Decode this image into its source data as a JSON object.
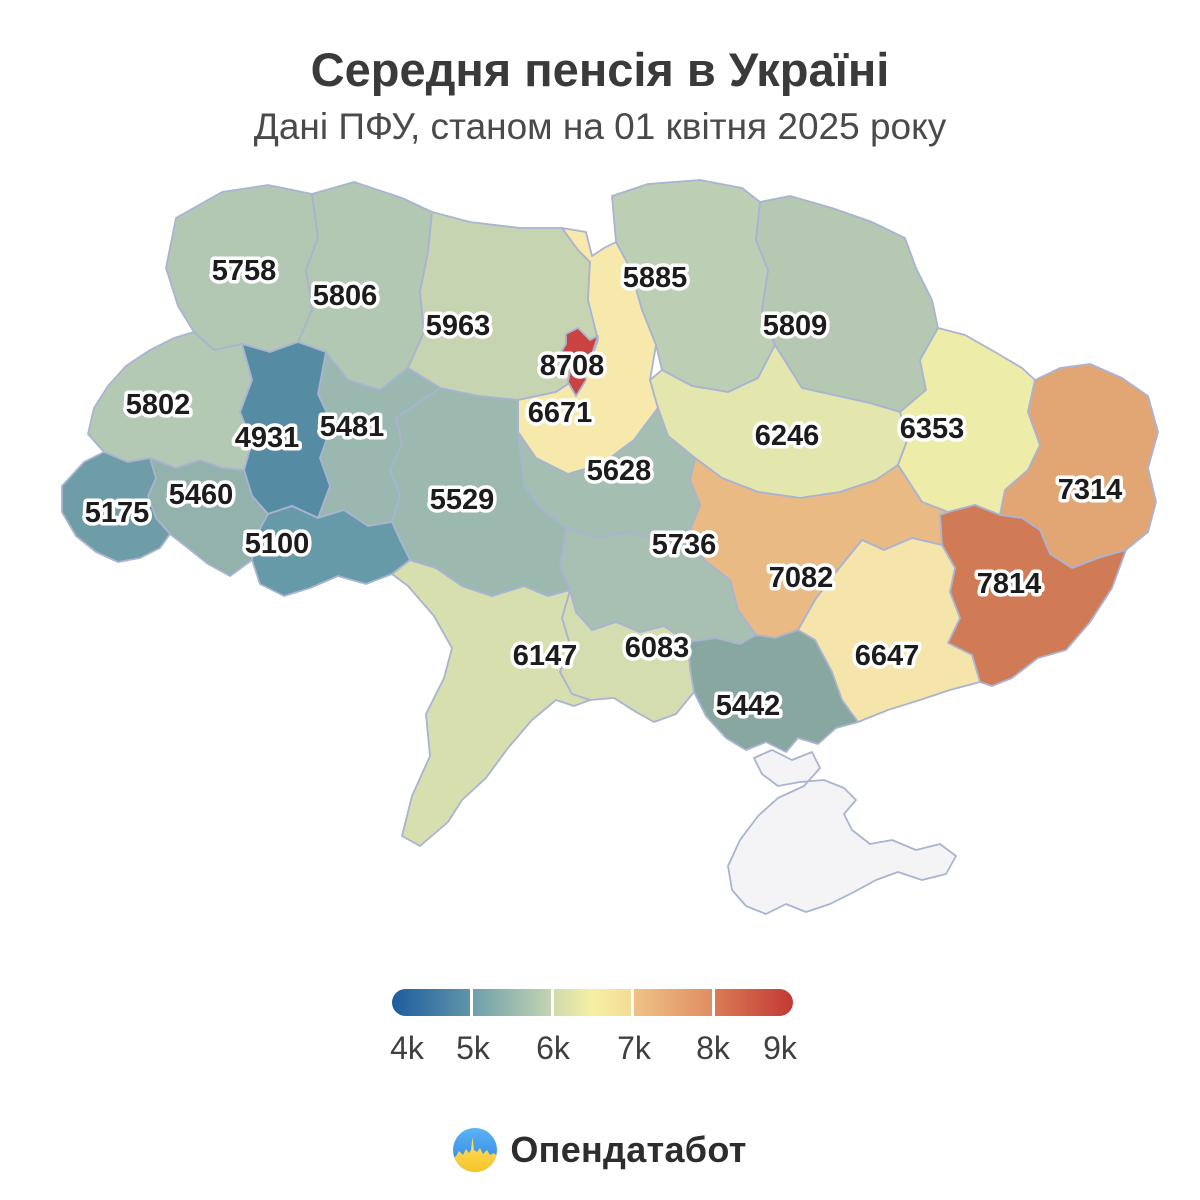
{
  "header": {
    "title": "Середня пенсія в Україні",
    "subtitle": "Дані ПФУ, станом на 01 квітня 2025 року"
  },
  "map": {
    "border_color": "#a9b3d2",
    "regions": [
      {
        "id": "volyn",
        "label": "5758",
        "color": "#b3c8b3"
      },
      {
        "id": "rivne",
        "label": "5806",
        "color": "#b3c8b2"
      },
      {
        "id": "zhytomyr",
        "label": "5963",
        "color": "#c6d4b2"
      },
      {
        "id": "chernihiv",
        "label": "5885",
        "color": "#bcceb4"
      },
      {
        "id": "sumy",
        "label": "5809",
        "color": "#b5c8b1"
      },
      {
        "id": "kyiv-oblast",
        "label": "6671",
        "color": "#f7e9ab"
      },
      {
        "id": "poltava",
        "label": "6246",
        "color": "#e3e6ad"
      },
      {
        "id": "kharkiv",
        "label": "6353",
        "color": "#eeeca9"
      },
      {
        "id": "luhansk",
        "label": "7314",
        "color": "#e2a674"
      },
      {
        "id": "donetsk",
        "label": "7814",
        "color": "#d07a56"
      },
      {
        "id": "dnipro",
        "label": "7082",
        "color": "#eaba84"
      },
      {
        "id": "zaporizhzhia",
        "label": "6647",
        "color": "#f5e5aa"
      },
      {
        "id": "kherson",
        "label": "5442",
        "color": "#88a7a0"
      },
      {
        "id": "mykolaiv",
        "label": "6083",
        "color": "#d4ddb0"
      },
      {
        "id": "odesa",
        "label": "6147",
        "color": "#d8dfae"
      },
      {
        "id": "kirovohrad",
        "label": "5736",
        "color": "#a8c0b1"
      },
      {
        "id": "cherkasy",
        "label": "5628",
        "color": "#a4beb1"
      },
      {
        "id": "vinnytsia",
        "label": "5529",
        "color": "#9cb9b0"
      },
      {
        "id": "khmelnytskyi",
        "label": "5481",
        "color": "#9ab7b0"
      },
      {
        "id": "ternopil",
        "label": "4931",
        "color": "#558ca4"
      },
      {
        "id": "lviv",
        "label": "5802",
        "color": "#b4c9b3"
      },
      {
        "id": "ivano-frankivsk",
        "label": "5460",
        "color": "#94b2ac"
      },
      {
        "id": "zakarpattia",
        "label": "5175",
        "color": "#6f9da7"
      },
      {
        "id": "chernivtsi",
        "label": "5100",
        "color": "#679aa8"
      },
      {
        "id": "crimea",
        "label": "",
        "color": "#f4f4f6",
        "stroke": "#c6cbdf"
      },
      {
        "id": "kyiv-city",
        "label": "8708",
        "color": "#c94440"
      }
    ]
  },
  "legend": {
    "ticks": [
      "4k",
      "5k",
      "6k",
      "7k",
      "8k",
      "9k"
    ],
    "segments": [
      {
        "stops": [
          "#1d5c9e",
          "#5f95a9"
        ]
      },
      {
        "stops": [
          "#6e9fab",
          "#c3d4b1"
        ]
      },
      {
        "stops": [
          "#cfdaad",
          "#f6f0a3",
          "#f3dc96"
        ]
      },
      {
        "stops": [
          "#efc287",
          "#e08d62"
        ]
      },
      {
        "stops": [
          "#db7a54",
          "#c23a35"
        ]
      }
    ]
  },
  "footer": {
    "logo_text": "Опендатабот",
    "logo_blue": "#41a0ec",
    "logo_yellow": "#ffd94d"
  },
  "chart_data": {
    "type": "choropleth-map",
    "title": "Середня пенсія в Україні",
    "subtitle": "Дані ПФУ, станом на 01 квітня 2025 року",
    "value_range": [
      4000,
      9000
    ],
    "legend_ticks": [
      "4k",
      "5k",
      "6k",
      "7k",
      "8k",
      "9k"
    ],
    "colormap": "blue-teal-yellow-orange-red",
    "regions": [
      {
        "name": "Volyn",
        "value": 5758
      },
      {
        "name": "Rivne",
        "value": 5806
      },
      {
        "name": "Zhytomyr",
        "value": 5963
      },
      {
        "name": "Chernihiv",
        "value": 5885
      },
      {
        "name": "Sumy",
        "value": 5809
      },
      {
        "name": "Kyiv oblast",
        "value": 6671
      },
      {
        "name": "Kyiv city",
        "value": 8708
      },
      {
        "name": "Poltava",
        "value": 6246
      },
      {
        "name": "Kharkiv",
        "value": 6353
      },
      {
        "name": "Luhansk",
        "value": 7314
      },
      {
        "name": "Donetsk",
        "value": 7814
      },
      {
        "name": "Dnipropetrovsk",
        "value": 7082
      },
      {
        "name": "Zaporizhzhia",
        "value": 6647
      },
      {
        "name": "Kherson",
        "value": 5442
      },
      {
        "name": "Mykolaiv",
        "value": 6083
      },
      {
        "name": "Odesa",
        "value": 6147
      },
      {
        "name": "Kirovohrad",
        "value": 5736
      },
      {
        "name": "Cherkasy",
        "value": 5628
      },
      {
        "name": "Vinnytsia",
        "value": 5529
      },
      {
        "name": "Khmelnytskyi",
        "value": 5481
      },
      {
        "name": "Ternopil",
        "value": 4931
      },
      {
        "name": "Lviv",
        "value": 5802
      },
      {
        "name": "Ivano-Frankivsk",
        "value": 5460
      },
      {
        "name": "Zakarpattia",
        "value": 5175
      },
      {
        "name": "Chernivtsi",
        "value": 5100
      },
      {
        "name": "Crimea",
        "value": null
      }
    ]
  }
}
